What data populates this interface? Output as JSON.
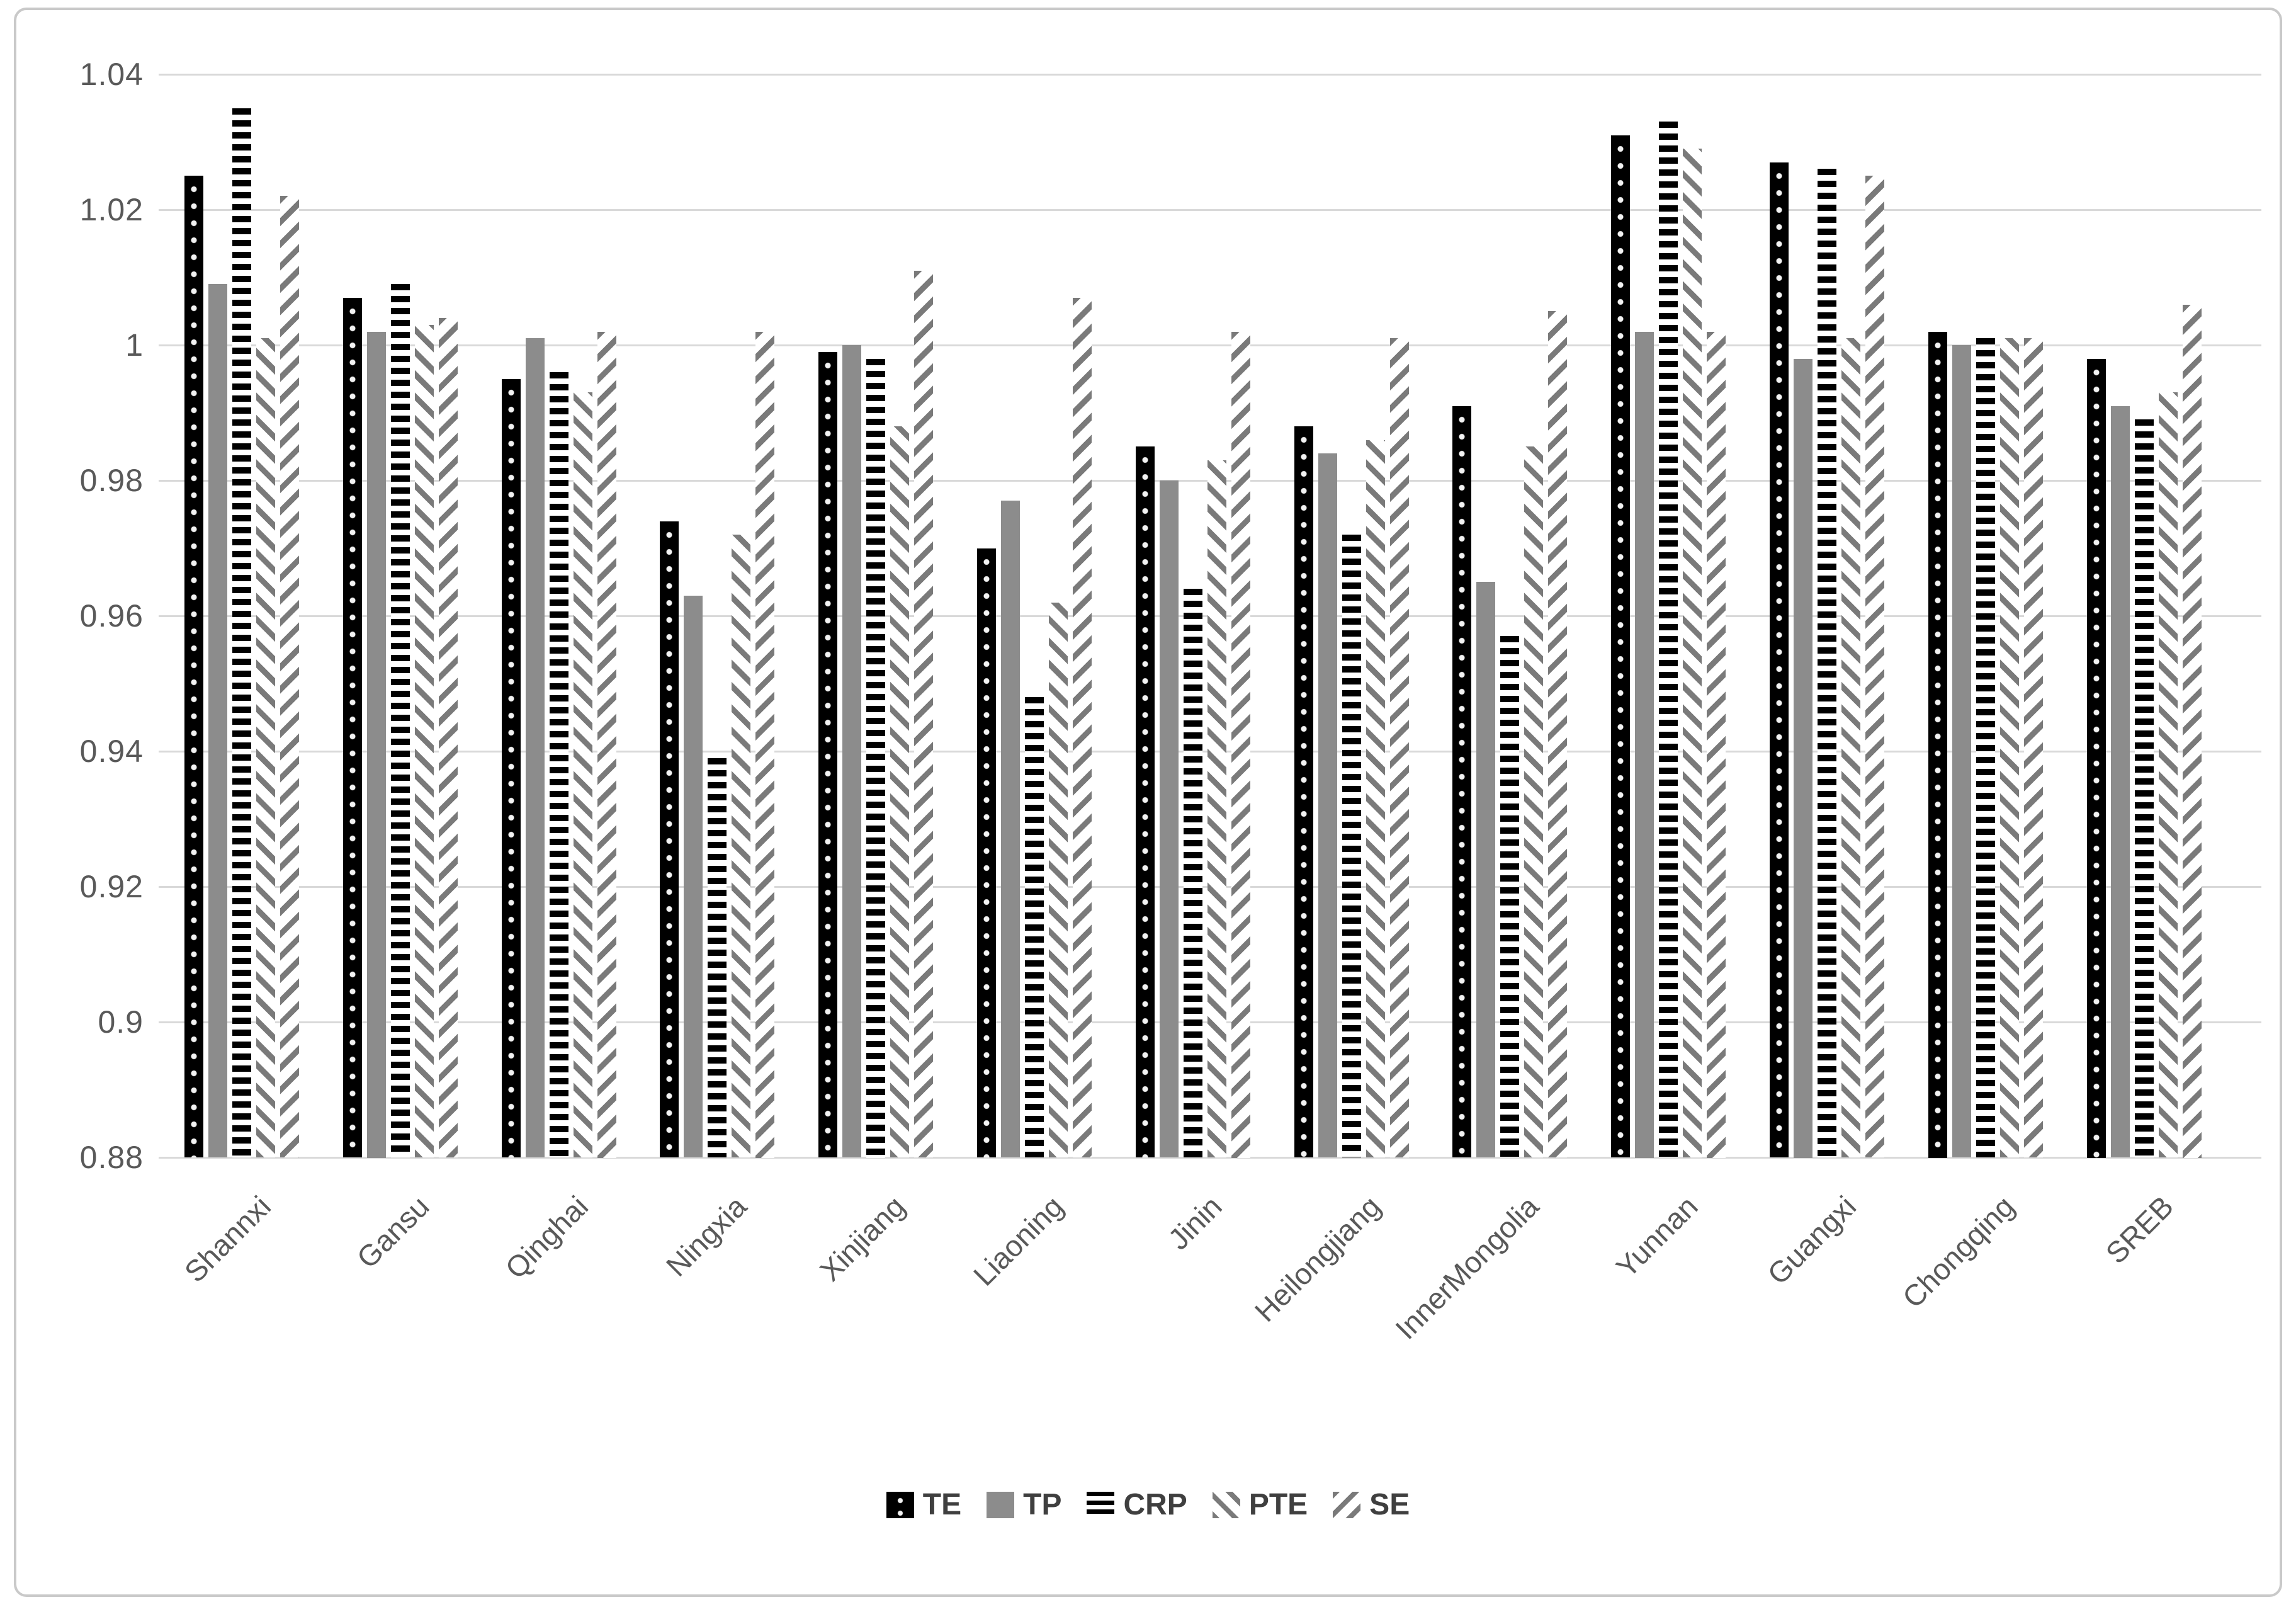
{
  "figure": {
    "background": "#ffffff",
    "border_color": "#c9c9c9"
  },
  "chart_data": {
    "type": "bar",
    "title": "",
    "xlabel": "",
    "ylabel": "",
    "categories": [
      "Shannxi",
      "Gansu",
      "Qinghai",
      "Ningxia",
      "Xinjiang",
      "Liaoning",
      "Jinin",
      "Heilongjiang",
      "InnerMongolia",
      "Yunnan",
      "Guangxi",
      "Chongqing",
      "SREB"
    ],
    "series": [
      {
        "name": "TE",
        "pattern": "black-dotted",
        "values": [
          1.025,
          1.007,
          0.995,
          0.974,
          0.999,
          0.97,
          0.985,
          0.988,
          0.991,
          1.031,
          1.027,
          1.002,
          0.998
        ]
      },
      {
        "name": "TP",
        "pattern": "solid-gray",
        "values": [
          1.009,
          1.002,
          1.001,
          0.963,
          1.0,
          0.977,
          0.98,
          0.984,
          0.965,
          1.002,
          0.998,
          1.0,
          0.991
        ]
      },
      {
        "name": "CRP",
        "pattern": "horizontal-stripes",
        "values": [
          1.035,
          1.009,
          0.996,
          0.939,
          0.998,
          0.948,
          0.964,
          0.972,
          0.957,
          1.033,
          1.026,
          1.001,
          0.989
        ]
      },
      {
        "name": "PTE",
        "pattern": "diagonal-backslash",
        "values": [
          1.001,
          1.003,
          0.993,
          0.972,
          0.988,
          0.962,
          0.983,
          0.986,
          0.985,
          1.029,
          1.001,
          1.001,
          0.993
        ]
      },
      {
        "name": "SE",
        "pattern": "diagonal-slash",
        "values": [
          1.022,
          1.004,
          1.002,
          1.002,
          1.011,
          1.007,
          1.002,
          1.001,
          1.005,
          1.002,
          1.025,
          1.001,
          1.006
        ]
      }
    ],
    "ylim": [
      0.88,
      1.04
    ],
    "ytick_values": [
      1.04,
      1.02,
      1.0,
      0.98,
      0.96,
      0.94,
      0.92,
      0.9,
      0.88
    ],
    "ytick_labels": [
      "1.04",
      "1.02",
      "1",
      "0.98",
      "0.96",
      "0.94",
      "0.92",
      "0.9",
      "0.88"
    ],
    "grid": true,
    "legend_position": "bottom",
    "colors": {
      "black": "#000000",
      "gray": "#8c8c8c",
      "stripe_gray": "#7a7a7a",
      "gridline": "#d9d9d9",
      "axis_text": "#595959",
      "legend_text": "#3f3f3f"
    }
  }
}
